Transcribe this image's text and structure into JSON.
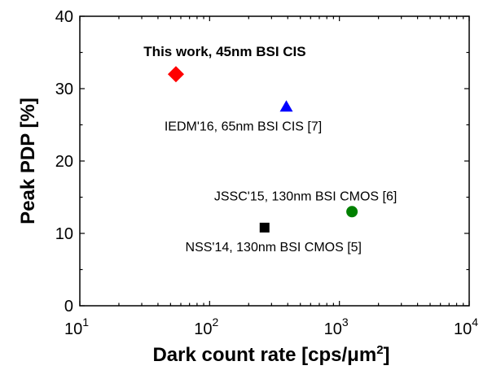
{
  "chart_data": {
    "type": "scatter",
    "xlabel": "Dark count rate [cps/μm²]",
    "xlabel_main": "Dark count rate [cps/",
    "xlabel_unit": "μm",
    "xlabel_sup": "2",
    "xlabel_end": "]",
    "ylabel": "Peak PDP [%]",
    "xscale": "log",
    "xlim": [
      10,
      10000
    ],
    "ylim": [
      0,
      40
    ],
    "xticks": [
      {
        "base": "10",
        "exp": "1",
        "value": 10
      },
      {
        "base": "10",
        "exp": "2",
        "value": 100
      },
      {
        "base": "10",
        "exp": "3",
        "value": 1000
      },
      {
        "base": "10",
        "exp": "4",
        "value": 10000
      }
    ],
    "yticks": [
      0,
      10,
      20,
      30,
      40
    ],
    "grid": false,
    "series": [
      {
        "label": "This work, 45nm BSI CIS",
        "marker": "diamond",
        "color": "#ff0000",
        "x": 55,
        "y": 32,
        "label_style": "bold"
      },
      {
        "label": "IEDM'16, 65nm BSI CIS [7]",
        "marker": "triangle",
        "color": "#0000ff",
        "x": 390,
        "y": 27.5,
        "label_style": "normal"
      },
      {
        "label": "JSSC'15, 130nm BSI CMOS [6]",
        "marker": "circle",
        "color": "#008000",
        "x": 1250,
        "y": 13,
        "label_style": "normal"
      },
      {
        "label": "NSS'14, 130nm BSI CMOS [5]",
        "marker": "square",
        "color": "#000000",
        "x": 265,
        "y": 10.8,
        "label_style": "normal"
      }
    ]
  }
}
